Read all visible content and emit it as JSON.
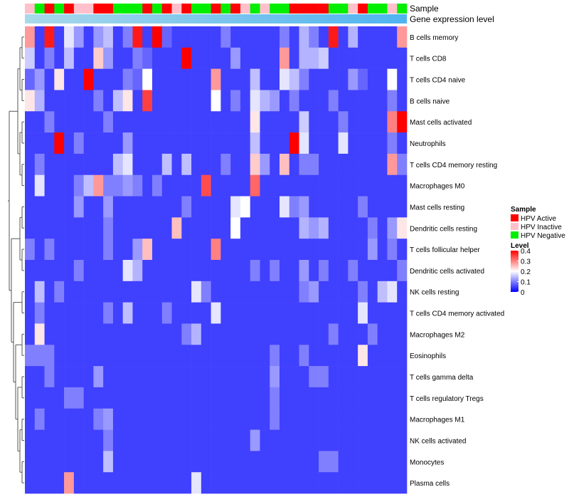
{
  "chart_data": {
    "type": "heatmap",
    "annotation_labels": [
      "Sample",
      "Gene expression level"
    ],
    "rows": [
      "B cells memory",
      "T cells CD8",
      "T cells CD4 naive",
      "B cells naive",
      "Mast cells activated",
      "Neutrophils",
      "T cells CD4 memory resting",
      "Macrophages M0",
      "Mast cells resting",
      "Dendritic cells resting",
      "T cells follicular helper",
      "Dendritic cells activated",
      "NK cells resting",
      "T cells CD4 memory activated",
      "Macrophages M2",
      "Eosinophils",
      "T cells gamma delta",
      "T cells regulatory  Tregs",
      "Macrophages M1",
      "NK cells activated",
      "Monocytes",
      "Plasma cells"
    ],
    "sample_groups": [
      "I",
      "N",
      "A",
      "N",
      "A",
      "I",
      "I",
      "A",
      "A",
      "N",
      "N",
      "N",
      "A",
      "N",
      "A",
      "I",
      "A",
      "N",
      "N",
      "A",
      "N",
      "A",
      "I",
      "N",
      "I",
      "N",
      "N",
      "A",
      "A",
      "A",
      "A",
      "N",
      "N",
      "I",
      "A",
      "N",
      "N",
      "I",
      "N"
    ],
    "legend_sample": {
      "title": "Sample",
      "entries": [
        {
          "key": "A",
          "label": "HPV Active",
          "color": "#ff0000"
        },
        {
          "key": "I",
          "label": "HPV Inactive",
          "color": "#ffc0cb"
        },
        {
          "key": "N",
          "label": "HPV Negative",
          "color": "#00ee00"
        }
      ]
    },
    "legend_level": {
      "title": "Level",
      "ticks": [
        0.4,
        0.3,
        0.2,
        0.1,
        0
      ],
      "tick_labels": [
        "0.4",
        "0.3",
        "0.2",
        "0.1",
        "0"
      ],
      "range": [
        0,
        0.4
      ],
      "colors": [
        "#0000ff",
        "#ffffff",
        "#ff0000"
      ]
    },
    "expression_bar_colors": [
      "#a8d8ea",
      "#4fb3f0"
    ],
    "columns": 39,
    "values": [
      [
        0.28,
        0.05,
        0.38,
        0.05,
        0.18,
        0.12,
        0.05,
        0.12,
        0.15,
        0.05,
        0.1,
        0.38,
        0.05,
        0.4,
        0.08,
        0.05,
        0.05,
        0.05,
        0.05,
        0.05,
        0.1,
        0.05,
        0.05,
        0.05,
        0.05,
        0.05,
        0.1,
        0.05,
        0.14,
        0.1,
        0.05,
        0.38,
        0.05,
        0.14,
        0.05,
        0.05,
        0.05,
        0.05,
        0.28
      ],
      [
        0.16,
        0.05,
        0.1,
        0.05,
        0.15,
        0.05,
        0.05,
        0.24,
        0.12,
        0.05,
        0.05,
        0.1,
        0.08,
        0.05,
        0.05,
        0.05,
        0.4,
        0.05,
        0.05,
        0.05,
        0.05,
        0.12,
        0.05,
        0.05,
        0.05,
        0.05,
        0.28,
        0.05,
        0.14,
        0.14,
        0.16,
        0.05,
        0.05,
        0.05,
        0.05,
        0.05,
        0.05,
        0.05,
        0.05
      ],
      [
        0.08,
        0.12,
        0.05,
        0.22,
        0.05,
        0.05,
        0.4,
        0.05,
        0.05,
        0.05,
        0.1,
        0.08,
        0.2,
        0.05,
        0.05,
        0.05,
        0.05,
        0.05,
        0.05,
        0.28,
        0.05,
        0.05,
        0.05,
        0.15,
        0.05,
        0.05,
        0.18,
        0.15,
        0.1,
        0.05,
        0.05,
        0.05,
        0.05,
        0.12,
        0.08,
        0.05,
        0.05,
        0.2,
        0.05
      ],
      [
        0.22,
        0.14,
        0.05,
        0.05,
        0.05,
        0.05,
        0.05,
        0.1,
        0.05,
        0.15,
        0.22,
        0.05,
        0.35,
        0.05,
        0.05,
        0.05,
        0.05,
        0.05,
        0.05,
        0.2,
        0.05,
        0.1,
        0.05,
        0.18,
        0.14,
        0.12,
        0.05,
        0.1,
        0.05,
        0.05,
        0.05,
        0.1,
        0.05,
        0.05,
        0.05,
        0.05,
        0.05,
        0.1,
        0.05
      ],
      [
        0.05,
        0.05,
        0.1,
        0.05,
        0.05,
        0.05,
        0.05,
        0.05,
        0.1,
        0.05,
        0.05,
        0.05,
        0.05,
        0.05,
        0.05,
        0.05,
        0.05,
        0.05,
        0.05,
        0.05,
        0.05,
        0.05,
        0.05,
        0.22,
        0.05,
        0.05,
        0.05,
        0.05,
        0.16,
        0.05,
        0.05,
        0.05,
        0.1,
        0.05,
        0.05,
        0.05,
        0.05,
        0.3,
        0.4
      ],
      [
        0.05,
        0.05,
        0.05,
        0.4,
        0.05,
        0.1,
        0.05,
        0.05,
        0.05,
        0.05,
        0.12,
        0.05,
        0.05,
        0.05,
        0.05,
        0.05,
        0.05,
        0.05,
        0.05,
        0.05,
        0.05,
        0.05,
        0.05,
        0.15,
        0.05,
        0.05,
        0.05,
        0.4,
        0.18,
        0.05,
        0.05,
        0.05,
        0.18,
        0.05,
        0.05,
        0.05,
        0.05,
        0.1,
        0.05
      ],
      [
        0.05,
        0.1,
        0.05,
        0.05,
        0.05,
        0.05,
        0.05,
        0.05,
        0.05,
        0.15,
        0.18,
        0.05,
        0.05,
        0.05,
        0.15,
        0.05,
        0.15,
        0.05,
        0.05,
        0.05,
        0.1,
        0.05,
        0.05,
        0.24,
        0.12,
        0.05,
        0.25,
        0.05,
        0.1,
        0.1,
        0.05,
        0.05,
        0.05,
        0.05,
        0.05,
        0.05,
        0.05,
        0.28,
        0.1
      ],
      [
        0.05,
        0.18,
        0.05,
        0.05,
        0.05,
        0.1,
        0.15,
        0.28,
        0.1,
        0.1,
        0.12,
        0.1,
        0.05,
        0.1,
        0.05,
        0.05,
        0.05,
        0.05,
        0.34,
        0.05,
        0.05,
        0.05,
        0.05,
        0.32,
        0.05,
        0.05,
        0.05,
        0.05,
        0.05,
        0.05,
        0.05,
        0.05,
        0.05,
        0.05,
        0.05,
        0.05,
        0.05,
        0.05,
        0.05
      ],
      [
        0.05,
        0.05,
        0.05,
        0.05,
        0.05,
        0.12,
        0.05,
        0.05,
        0.12,
        0.05,
        0.05,
        0.05,
        0.05,
        0.05,
        0.05,
        0.05,
        0.1,
        0.05,
        0.05,
        0.05,
        0.05,
        0.18,
        0.2,
        0.05,
        0.05,
        0.05,
        0.18,
        0.1,
        0.12,
        0.05,
        0.05,
        0.05,
        0.05,
        0.05,
        0.1,
        0.05,
        0.05,
        0.05,
        0.05
      ],
      [
        0.05,
        0.05,
        0.05,
        0.05,
        0.05,
        0.05,
        0.05,
        0.05,
        0.1,
        0.05,
        0.05,
        0.05,
        0.05,
        0.05,
        0.05,
        0.25,
        0.05,
        0.05,
        0.05,
        0.05,
        0.05,
        0.2,
        0.05,
        0.05,
        0.05,
        0.05,
        0.05,
        0.05,
        0.14,
        0.12,
        0.14,
        0.05,
        0.05,
        0.05,
        0.05,
        0.1,
        0.05,
        0.12,
        0.22
      ],
      [
        0.1,
        0.05,
        0.1,
        0.05,
        0.05,
        0.05,
        0.05,
        0.05,
        0.1,
        0.05,
        0.05,
        0.12,
        0.25,
        0.05,
        0.05,
        0.05,
        0.05,
        0.05,
        0.05,
        0.3,
        0.05,
        0.05,
        0.05,
        0.05,
        0.05,
        0.05,
        0.05,
        0.05,
        0.05,
        0.05,
        0.05,
        0.05,
        0.05,
        0.05,
        0.05,
        0.12,
        0.05,
        0.1,
        0.05
      ],
      [
        0.05,
        0.05,
        0.05,
        0.05,
        0.05,
        0.1,
        0.05,
        0.05,
        0.05,
        0.05,
        0.18,
        0.14,
        0.05,
        0.05,
        0.05,
        0.05,
        0.05,
        0.05,
        0.05,
        0.05,
        0.05,
        0.05,
        0.05,
        0.1,
        0.05,
        0.1,
        0.05,
        0.05,
        0.12,
        0.05,
        0.1,
        0.05,
        0.05,
        0.1,
        0.05,
        0.05,
        0.05,
        0.05,
        0.1
      ],
      [
        0.05,
        0.15,
        0.05,
        0.1,
        0.05,
        0.05,
        0.05,
        0.05,
        0.05,
        0.05,
        0.05,
        0.05,
        0.05,
        0.05,
        0.05,
        0.05,
        0.05,
        0.18,
        0.1,
        0.05,
        0.05,
        0.05,
        0.05,
        0.05,
        0.05,
        0.05,
        0.05,
        0.05,
        0.1,
        0.12,
        0.05,
        0.05,
        0.05,
        0.05,
        0.1,
        0.05,
        0.15,
        0.18,
        0.05
      ],
      [
        0.05,
        0.1,
        0.05,
        0.05,
        0.05,
        0.05,
        0.05,
        0.05,
        0.1,
        0.05,
        0.15,
        0.05,
        0.05,
        0.05,
        0.1,
        0.05,
        0.05,
        0.05,
        0.05,
        0.18,
        0.05,
        0.05,
        0.05,
        0.05,
        0.05,
        0.05,
        0.05,
        0.05,
        0.05,
        0.05,
        0.05,
        0.05,
        0.05,
        0.05,
        0.18,
        0.05,
        0.05,
        0.05,
        0.05
      ],
      [
        0.05,
        0.22,
        0.05,
        0.05,
        0.05,
        0.05,
        0.05,
        0.05,
        0.05,
        0.05,
        0.05,
        0.05,
        0.05,
        0.05,
        0.05,
        0.05,
        0.1,
        0.14,
        0.05,
        0.05,
        0.05,
        0.05,
        0.05,
        0.05,
        0.05,
        0.05,
        0.05,
        0.05,
        0.05,
        0.05,
        0.05,
        0.1,
        0.05,
        0.05,
        0.05,
        0.1,
        0.05,
        0.05,
        0.05
      ],
      [
        0.1,
        0.1,
        0.1,
        0.05,
        0.05,
        0.05,
        0.05,
        0.05,
        0.05,
        0.05,
        0.05,
        0.05,
        0.05,
        0.05,
        0.05,
        0.05,
        0.05,
        0.05,
        0.05,
        0.05,
        0.05,
        0.05,
        0.05,
        0.05,
        0.05,
        0.1,
        0.05,
        0.05,
        0.1,
        0.05,
        0.05,
        0.05,
        0.05,
        0.05,
        0.22,
        0.05,
        0.05,
        0.05,
        0.05
      ],
      [
        0.05,
        0.05,
        0.1,
        0.05,
        0.05,
        0.05,
        0.05,
        0.12,
        0.05,
        0.05,
        0.05,
        0.05,
        0.05,
        0.05,
        0.05,
        0.05,
        0.05,
        0.05,
        0.05,
        0.05,
        0.05,
        0.05,
        0.05,
        0.05,
        0.05,
        0.12,
        0.05,
        0.05,
        0.05,
        0.1,
        0.1,
        0.05,
        0.05,
        0.05,
        0.05,
        0.05,
        0.05,
        0.05,
        0.05
      ],
      [
        0.05,
        0.05,
        0.05,
        0.05,
        0.1,
        0.1,
        0.05,
        0.05,
        0.05,
        0.05,
        0.05,
        0.05,
        0.05,
        0.05,
        0.05,
        0.05,
        0.05,
        0.05,
        0.05,
        0.05,
        0.05,
        0.05,
        0.05,
        0.05,
        0.05,
        0.1,
        0.05,
        0.05,
        0.05,
        0.05,
        0.05,
        0.05,
        0.05,
        0.05,
        0.05,
        0.05,
        0.05,
        0.05,
        0.05
      ],
      [
        0.05,
        0.1,
        0.05,
        0.05,
        0.05,
        0.05,
        0.05,
        0.1,
        0.12,
        0.05,
        0.05,
        0.05,
        0.05,
        0.05,
        0.05,
        0.05,
        0.05,
        0.05,
        0.05,
        0.05,
        0.05,
        0.05,
        0.05,
        0.05,
        0.05,
        0.1,
        0.05,
        0.05,
        0.05,
        0.05,
        0.05,
        0.05,
        0.05,
        0.05,
        0.05,
        0.05,
        0.05,
        0.05,
        0.05
      ],
      [
        0.05,
        0.05,
        0.05,
        0.05,
        0.05,
        0.05,
        0.05,
        0.05,
        0.1,
        0.05,
        0.05,
        0.05,
        0.05,
        0.05,
        0.05,
        0.05,
        0.05,
        0.05,
        0.05,
        0.05,
        0.05,
        0.05,
        0.05,
        0.12,
        0.05,
        0.05,
        0.05,
        0.05,
        0.05,
        0.05,
        0.05,
        0.05,
        0.05,
        0.05,
        0.05,
        0.05,
        0.05,
        0.05,
        0.05
      ],
      [
        0.05,
        0.05,
        0.05,
        0.05,
        0.05,
        0.05,
        0.05,
        0.05,
        0.15,
        0.05,
        0.05,
        0.05,
        0.05,
        0.05,
        0.05,
        0.05,
        0.05,
        0.05,
        0.05,
        0.05,
        0.05,
        0.05,
        0.05,
        0.05,
        0.05,
        0.05,
        0.05,
        0.05,
        0.05,
        0.05,
        0.1,
        0.1,
        0.05,
        0.05,
        0.05,
        0.05,
        0.05,
        0.05,
        0.05
      ],
      [
        0.05,
        0.05,
        0.05,
        0.05,
        0.28,
        0.05,
        0.05,
        0.05,
        0.05,
        0.05,
        0.05,
        0.05,
        0.05,
        0.05,
        0.05,
        0.05,
        0.05,
        0.18,
        0.05,
        0.05,
        0.05,
        0.05,
        0.05,
        0.05,
        0.05,
        0.05,
        0.05,
        0.05,
        0.05,
        0.05,
        0.05,
        0.05,
        0.05,
        0.05,
        0.05,
        0.05,
        0.05,
        0.05,
        0.05
      ]
    ]
  }
}
